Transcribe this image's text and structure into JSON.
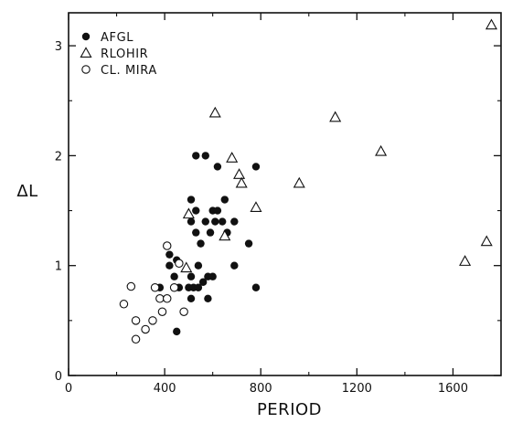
{
  "chart_data": {
    "type": "scatter",
    "xlabel": "PERIOD",
    "ylabel": "ΔL",
    "xlim": [
      0,
      1800
    ],
    "ylim": [
      0,
      3.3
    ],
    "xticks": [
      0,
      400,
      800,
      1200,
      1600
    ],
    "yticks": [
      0,
      1,
      2,
      3
    ],
    "xtick_labels": [
      "0",
      "400",
      "800",
      "1200",
      "1600"
    ],
    "ytick_labels": [
      "0",
      "1",
      "2",
      "3"
    ],
    "grid": false,
    "legend_position": "top-left",
    "series": [
      {
        "name": "AFGL",
        "marker": "filled-circle",
        "points": [
          [
            380,
            0.8
          ],
          [
            420,
            1.1
          ],
          [
            420,
            1.0
          ],
          [
            440,
            0.9
          ],
          [
            450,
            1.05
          ],
          [
            460,
            0.8
          ],
          [
            450,
            0.4
          ],
          [
            500,
            0.8
          ],
          [
            510,
            0.9
          ],
          [
            510,
            0.7
          ],
          [
            520,
            0.8
          ],
          [
            540,
            0.8
          ],
          [
            540,
            1.0
          ],
          [
            560,
            0.85
          ],
          [
            580,
            0.7
          ],
          [
            580,
            0.9
          ],
          [
            600,
            0.9
          ],
          [
            510,
            1.6
          ],
          [
            510,
            1.4
          ],
          [
            530,
            1.5
          ],
          [
            530,
            1.3
          ],
          [
            550,
            1.2
          ],
          [
            570,
            1.4
          ],
          [
            590,
            1.3
          ],
          [
            600,
            1.5
          ],
          [
            610,
            1.4
          ],
          [
            620,
            1.5
          ],
          [
            640,
            1.4
          ],
          [
            650,
            1.6
          ],
          [
            660,
            1.3
          ],
          [
            690,
            1.4
          ],
          [
            750,
            1.2
          ],
          [
            530,
            2.0
          ],
          [
            570,
            2.0
          ],
          [
            620,
            1.9
          ],
          [
            780,
            1.9
          ],
          [
            690,
            1.0
          ],
          [
            780,
            0.8
          ]
        ]
      },
      {
        "name": "RLOHIR",
        "marker": "open-triangle",
        "points": [
          [
            490,
            0.98
          ],
          [
            500,
            1.47
          ],
          [
            610,
            2.39
          ],
          [
            650,
            1.27
          ],
          [
            680,
            1.98
          ],
          [
            710,
            1.83
          ],
          [
            720,
            1.75
          ],
          [
            780,
            1.53
          ],
          [
            960,
            1.75
          ],
          [
            1110,
            2.35
          ],
          [
            1300,
            2.04
          ],
          [
            1650,
            1.04
          ],
          [
            1740,
            1.22
          ],
          [
            1760,
            3.19
          ]
        ]
      },
      {
        "name": "CL. MIRA",
        "marker": "open-circle",
        "points": [
          [
            230,
            0.65
          ],
          [
            260,
            0.81
          ],
          [
            280,
            0.5
          ],
          [
            280,
            0.33
          ],
          [
            320,
            0.42
          ],
          [
            350,
            0.5
          ],
          [
            360,
            0.8
          ],
          [
            380,
            0.7
          ],
          [
            390,
            0.58
          ],
          [
            410,
            0.7
          ],
          [
            410,
            1.18
          ],
          [
            440,
            0.8
          ],
          [
            460,
            1.02
          ],
          [
            480,
            0.58
          ]
        ]
      }
    ]
  }
}
